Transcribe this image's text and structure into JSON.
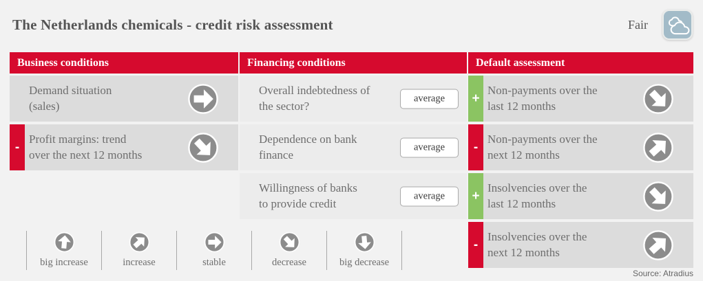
{
  "header": {
    "title": "The Netherlands chemicals - credit risk assessment",
    "rating_label": "Fair",
    "rating_icon": "clouds-icon"
  },
  "columns": {
    "business": {
      "title": "Business conditions",
      "rows": [
        {
          "label": "Demand situation\n(sales)",
          "badge": "",
          "trend": "stable"
        },
        {
          "label": "Profit margins: trend\nover the next 12 months",
          "badge": "-",
          "trend": "decrease"
        }
      ]
    },
    "financing": {
      "title": "Financing conditions",
      "rows": [
        {
          "label": "Overall indebtedness of\nthe sector?",
          "value": "average"
        },
        {
          "label": "Dependence on bank\nfinance",
          "value": "average"
        },
        {
          "label": "Willingness of banks\nto provide credit",
          "value": "average"
        }
      ]
    },
    "default_assessment": {
      "title": "Default assessment",
      "rows": [
        {
          "label": "Non-payments over the\nlast 12 months",
          "badge": "+",
          "trend": "decrease"
        },
        {
          "label": "Non-payments over the\nnext 12 months",
          "badge": "-",
          "trend": "increase"
        },
        {
          "label": "Insolvencies over the\nlast 12 months",
          "badge": "+",
          "trend": "decrease"
        },
        {
          "label": "Insolvencies over the\nnext 12 months",
          "badge": "-",
          "trend": "increase"
        }
      ]
    }
  },
  "legend": {
    "items": [
      {
        "label": "big increase",
        "trend": "big increase"
      },
      {
        "label": "increase",
        "trend": "increase"
      },
      {
        "label": "stable",
        "trend": "stable"
      },
      {
        "label": "decrease",
        "trend": "decrease"
      },
      {
        "label": "big decrease",
        "trend": "big decrease"
      }
    ]
  },
  "source": "Source: Atradius",
  "chart_data": {
    "type": "table",
    "title": "The Netherlands chemicals - credit risk assessment",
    "overall_rating": "Fair",
    "sections": [
      {
        "name": "Business conditions",
        "items": [
          {
            "indicator": "Demand situation (sales)",
            "trend": "stable",
            "sign": null
          },
          {
            "indicator": "Profit margins: trend over the next 12 months",
            "trend": "decrease",
            "sign": "-"
          }
        ]
      },
      {
        "name": "Financing conditions",
        "items": [
          {
            "indicator": "Overall indebtedness of the sector?",
            "value": "average"
          },
          {
            "indicator": "Dependence on bank finance",
            "value": "average"
          },
          {
            "indicator": "Willingness of banks to provide credit",
            "value": "average"
          }
        ]
      },
      {
        "name": "Default assessment",
        "items": [
          {
            "indicator": "Non-payments over the last 12 months",
            "trend": "decrease",
            "sign": "+"
          },
          {
            "indicator": "Non-payments over the next 12 months",
            "trend": "increase",
            "sign": "-"
          },
          {
            "indicator": "Insolvencies over the last 12 months",
            "trend": "decrease",
            "sign": "+"
          },
          {
            "indicator": "Insolvencies over the next 12 months",
            "trend": "increase",
            "sign": "-"
          }
        ]
      }
    ],
    "legend_scale": [
      "big increase",
      "increase",
      "stable",
      "decrease",
      "big decrease"
    ]
  },
  "colors": {
    "accent_red": "#d60a2e",
    "accent_green": "#8bc462",
    "row_dark": "#dcdcdc",
    "row_light": "#ececec",
    "icon_gray": "#8c8c8c",
    "fair_bg": "#a2bbc8",
    "text_gray": "#6e6e6e"
  }
}
